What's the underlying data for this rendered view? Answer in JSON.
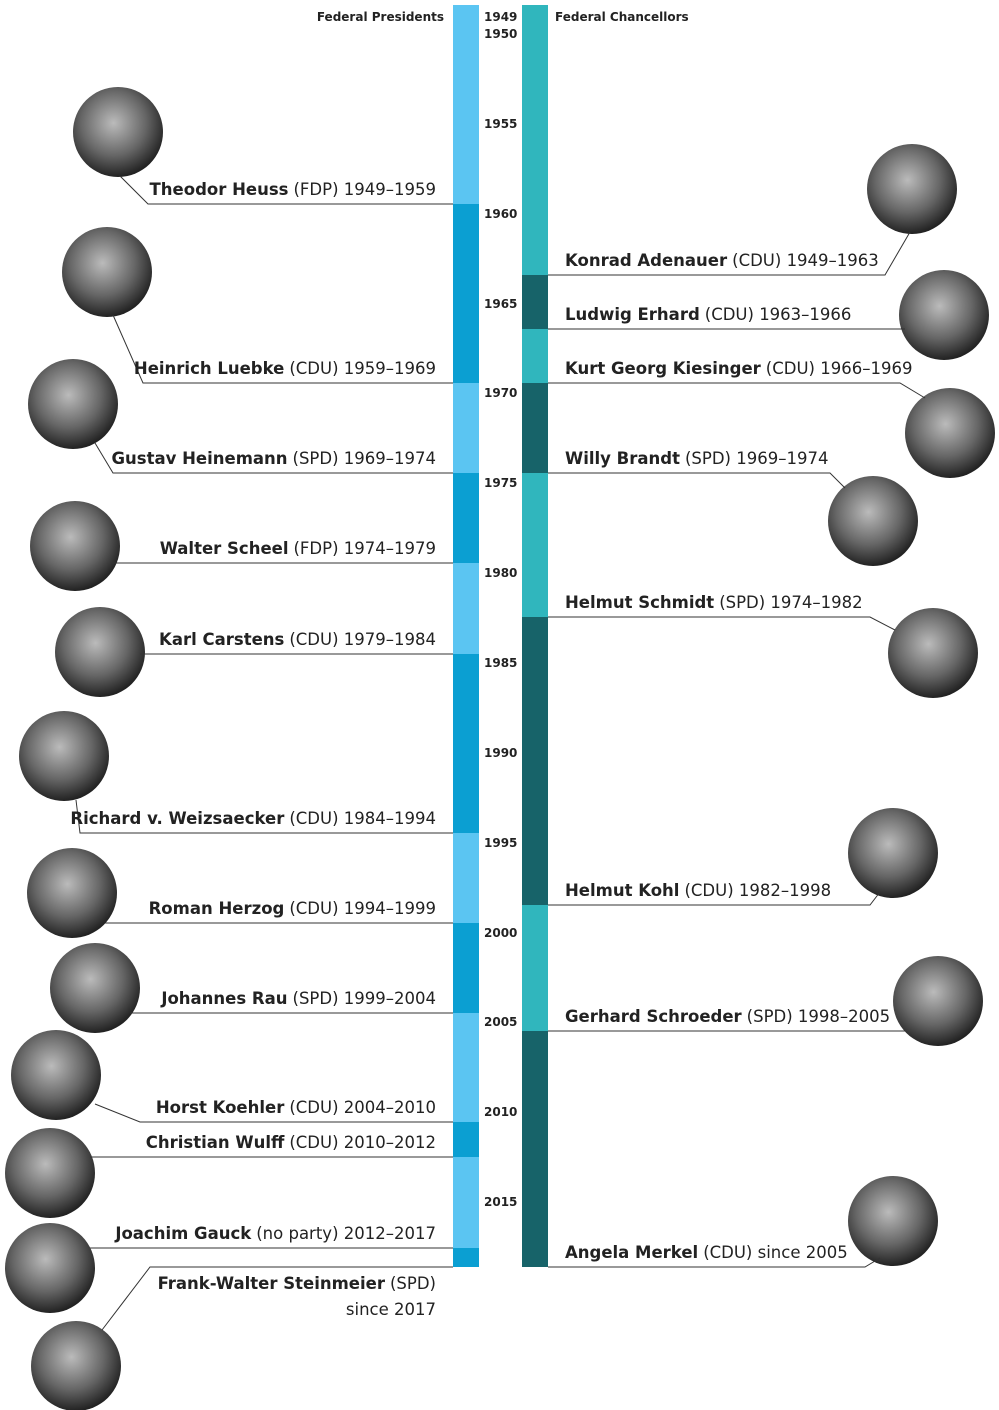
{
  "header": {
    "presidents": "Federal Presidents",
    "chancellors": "Federal Chancellors"
  },
  "years": [
    "1949",
    "1950",
    "1955",
    "1960",
    "1965",
    "1970",
    "1975",
    "1980",
    "1985",
    "1990",
    "1995",
    "2000",
    "2005",
    "2010",
    "2015"
  ],
  "presidents": [
    {
      "name": "Theodor Heuss",
      "detail": "(FDP) 1949–1959"
    },
    {
      "name": "Heinrich Luebke",
      "detail": "(CDU) 1959–1969"
    },
    {
      "name": "Gustav Heinemann",
      "detail": "(SPD) 1969–1974"
    },
    {
      "name": "Walter Scheel",
      "detail": "(FDP) 1974–1979"
    },
    {
      "name": "Karl Carstens",
      "detail": "(CDU) 1979–1984"
    },
    {
      "name": "Richard v. Weizsaecker",
      "detail": "(CDU) 1984–1994"
    },
    {
      "name": "Roman Herzog",
      "detail": "(CDU) 1994–1999"
    },
    {
      "name": "Johannes Rau",
      "detail": "(SPD) 1999–2004"
    },
    {
      "name": "Horst Koehler",
      "detail": "(CDU) 2004–2010"
    },
    {
      "name": "Christian Wulff",
      "detail": "(CDU) 2010–2012"
    },
    {
      "name": "Joachim Gauck",
      "detail": "(no party) 2012–2017"
    },
    {
      "name": "Frank-Walter Steinmeier",
      "detail": "(SPD)",
      "detail2": "since 2017"
    }
  ],
  "chancellors": [
    {
      "name": "Konrad Adenauer",
      "detail": "(CDU) 1949–1963"
    },
    {
      "name": "Ludwig Erhard",
      "detail": "(CDU) 1963–1966"
    },
    {
      "name": "Kurt Georg Kiesinger",
      "detail": "(CDU) 1966–1969"
    },
    {
      "name": "Willy Brandt",
      "detail": "(SPD) 1969–1974"
    },
    {
      "name": "Helmut Schmidt",
      "detail": "(SPD) 1974–1982"
    },
    {
      "name": "Helmut Kohl",
      "detail": "(CDU) 1982–1998"
    },
    {
      "name": "Gerhard Schroeder",
      "detail": "(SPD) 1998–2005"
    },
    {
      "name": "Angela Merkel",
      "detail": "(CDU) since 2005"
    }
  ]
}
